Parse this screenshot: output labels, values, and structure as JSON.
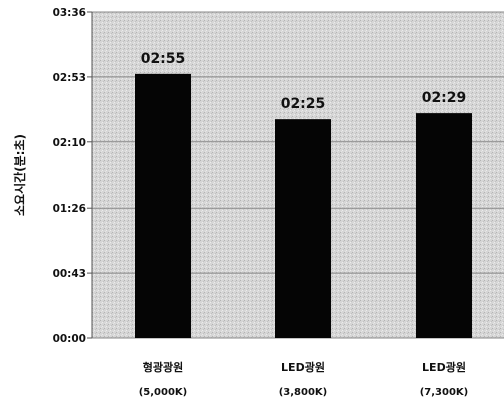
{
  "chart_data": {
    "type": "bar",
    "title": "",
    "xlabel": "",
    "ylabel": "소요시간(분:초)",
    "categories": [
      {
        "line1": "형광광원",
        "line2": "(5,000K)"
      },
      {
        "line1": "LED광원",
        "line2": "(3,800K)"
      },
      {
        "line1": "LED광원",
        "line2": "(7,300K)"
      }
    ],
    "values_seconds": [
      175,
      145,
      149
    ],
    "data_labels": [
      "02:55",
      "02:25",
      "02:29"
    ],
    "y_ticks_seconds": [
      0,
      43,
      86,
      130,
      173,
      216
    ],
    "y_tick_labels": [
      "00:00",
      "00:43",
      "01:26",
      "02:10",
      "02:53",
      "03:36"
    ],
    "ylim_seconds": [
      0,
      216
    ],
    "grid": true,
    "colors": {
      "bar": "#050505",
      "plot_bg": "#d4d4d4",
      "grid": "#8a8a8a"
    }
  }
}
